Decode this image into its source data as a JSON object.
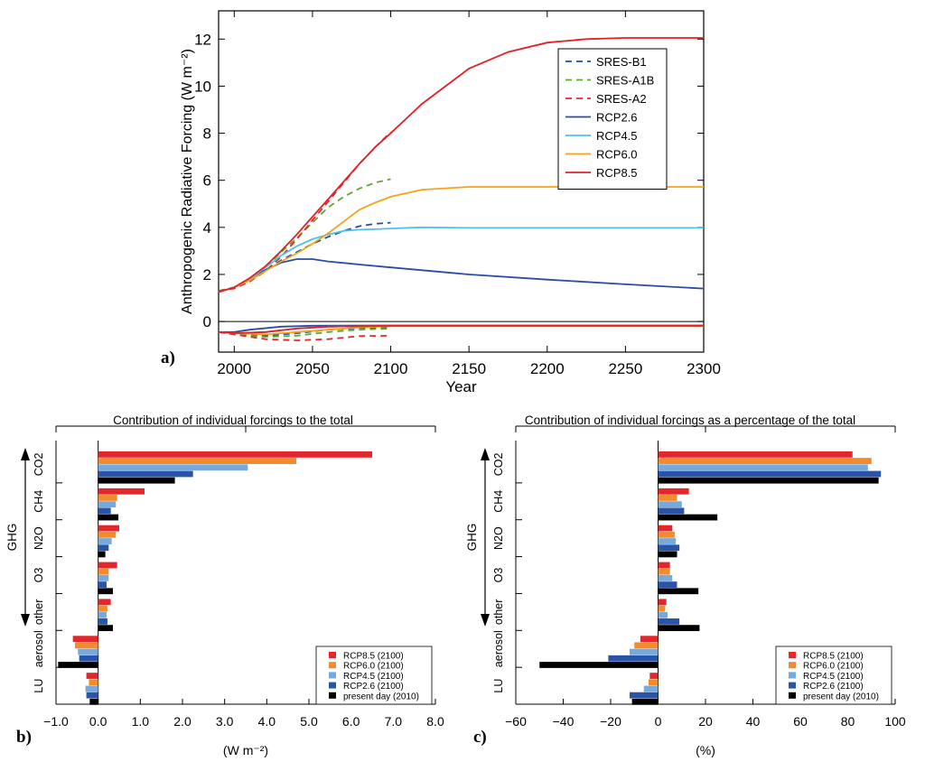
{
  "chart_data": [
    {
      "panel_label": "a)",
      "type": "line",
      "xlabel": "Year",
      "ylabel": "Anthropogenic Radiative Forcing (W m⁻²)",
      "xlim": [
        1990,
        2300
      ],
      "ylim": [
        -1.3,
        13.2
      ],
      "xticks": [
        2000,
        2050,
        2100,
        2150,
        2200,
        2250,
        2300
      ],
      "yticks": [
        0,
        2,
        4,
        6,
        8,
        10,
        12
      ],
      "grid": false,
      "legend_position": "top-right",
      "series": [
        {
          "name": "SRES-B1",
          "color": "#1f4f9e",
          "dash": true,
          "x": [
            1990,
            2000,
            2010,
            2020,
            2030,
            2040,
            2050,
            2060,
            2070,
            2080,
            2090,
            2100
          ],
          "y": [
            1.3,
            1.45,
            1.75,
            2.15,
            2.6,
            2.95,
            3.3,
            3.6,
            3.85,
            4.05,
            4.15,
            4.2
          ]
        },
        {
          "name": "SRES-A1B",
          "color": "#5aac2e",
          "dash": true,
          "x": [
            1990,
            2000,
            2010,
            2020,
            2030,
            2040,
            2050,
            2060,
            2070,
            2080,
            2090,
            2100
          ],
          "y": [
            1.3,
            1.45,
            1.8,
            2.3,
            2.95,
            3.55,
            4.2,
            4.85,
            5.3,
            5.65,
            5.9,
            6.05
          ]
        },
        {
          "name": "SRES-A2",
          "color": "#e5292f",
          "dash": true,
          "x": [
            1990,
            2000,
            2010,
            2020,
            2030,
            2040,
            2050,
            2060,
            2070,
            2080,
            2090,
            2100
          ],
          "y": [
            1.3,
            1.4,
            1.7,
            2.15,
            2.75,
            3.5,
            4.3,
            5.1,
            5.9,
            6.7,
            7.4,
            8.05
          ]
        },
        {
          "name": "RCP2.6",
          "color": "#2a4ca8",
          "dash": false,
          "x": [
            1990,
            2000,
            2010,
            2020,
            2030,
            2040,
            2050,
            2060,
            2080,
            2100,
            2150,
            2200,
            2250,
            2300
          ],
          "y": [
            1.25,
            1.45,
            1.8,
            2.2,
            2.5,
            2.65,
            2.65,
            2.55,
            2.42,
            2.3,
            2.0,
            1.78,
            1.58,
            1.4
          ]
        },
        {
          "name": "RCP4.5",
          "color": "#4ec3e8",
          "dash": false,
          "x": [
            1990,
            2000,
            2010,
            2020,
            2030,
            2040,
            2050,
            2060,
            2070,
            2080,
            2090,
            2100,
            2120,
            2150,
            2200,
            2250,
            2300
          ],
          "y": [
            1.25,
            1.45,
            1.8,
            2.3,
            2.8,
            3.2,
            3.5,
            3.7,
            3.85,
            3.9,
            3.92,
            3.95,
            4.0,
            3.98,
            3.98,
            3.98,
            3.98
          ]
        },
        {
          "name": "RCP6.0",
          "color": "#f5a318",
          "dash": false,
          "x": [
            1990,
            2000,
            2010,
            2020,
            2030,
            2040,
            2050,
            2060,
            2070,
            2080,
            2090,
            2100,
            2120,
            2150,
            2200,
            2250,
            2300
          ],
          "y": [
            1.25,
            1.45,
            1.75,
            2.15,
            2.55,
            2.9,
            3.3,
            3.75,
            4.25,
            4.75,
            5.05,
            5.3,
            5.6,
            5.72,
            5.72,
            5.72,
            5.72
          ]
        },
        {
          "name": "RCP8.5",
          "color": "#e41f26",
          "dash": false,
          "x": [
            1990,
            2000,
            2010,
            2020,
            2030,
            2040,
            2050,
            2060,
            2070,
            2080,
            2090,
            2100,
            2120,
            2150,
            2175,
            2200,
            2225,
            2250,
            2300
          ],
          "y": [
            1.25,
            1.45,
            1.85,
            2.35,
            3.0,
            3.7,
            4.45,
            5.2,
            5.95,
            6.7,
            7.4,
            8.0,
            9.25,
            10.75,
            11.45,
            11.85,
            12.0,
            12.05,
            12.05
          ]
        },
        {
          "name": "",
          "color": "#1f4f9e",
          "dash": true,
          "x": [
            1990,
            2000,
            2020,
            2040,
            2060,
            2080,
            2100
          ],
          "y": [
            -0.45,
            -0.5,
            -0.6,
            -0.5,
            -0.35,
            -0.28,
            -0.25
          ]
        },
        {
          "name": "",
          "color": "#5aac2e",
          "dash": true,
          "x": [
            1990,
            2000,
            2020,
            2040,
            2060,
            2080,
            2100
          ],
          "y": [
            -0.45,
            -0.55,
            -0.65,
            -0.6,
            -0.45,
            -0.35,
            -0.3
          ]
        },
        {
          "name": "",
          "color": "#e5292f",
          "dash": true,
          "x": [
            1990,
            2000,
            2020,
            2040,
            2060,
            2080,
            2100
          ],
          "y": [
            -0.45,
            -0.55,
            -0.75,
            -0.8,
            -0.75,
            -0.62,
            -0.6
          ]
        },
        {
          "name": "",
          "color": "#2a4ca8",
          "dash": false,
          "x": [
            1990,
            2000,
            2010,
            2030,
            2050,
            2100,
            2300
          ],
          "y": [
            -0.45,
            -0.45,
            -0.35,
            -0.22,
            -0.18,
            -0.17,
            -0.17
          ]
        },
        {
          "name": "",
          "color": "#4ec3e8",
          "dash": false,
          "x": [
            1990,
            2000,
            2020,
            2040,
            2060,
            2100,
            2300
          ],
          "y": [
            -0.45,
            -0.5,
            -0.45,
            -0.3,
            -0.22,
            -0.18,
            -0.18
          ]
        },
        {
          "name": "",
          "color": "#f5a318",
          "dash": false,
          "x": [
            1990,
            2000,
            2020,
            2040,
            2060,
            2080,
            2100,
            2300
          ],
          "y": [
            -0.45,
            -0.5,
            -0.55,
            -0.45,
            -0.35,
            -0.25,
            -0.2,
            -0.2
          ]
        },
        {
          "name": "",
          "color": "#e41f26",
          "dash": false,
          "x": [
            1990,
            2000,
            2020,
            2040,
            2060,
            2100,
            2300
          ],
          "y": [
            -0.45,
            -0.5,
            -0.45,
            -0.3,
            -0.22,
            -0.18,
            -0.18
          ]
        }
      ]
    },
    {
      "panel_label": "b)",
      "type": "bar",
      "orientation": "horizontal",
      "title": "Contribution of individual forcings to the total",
      "xlabel": "(W m⁻²)",
      "xlim": [
        -1.0,
        8.0
      ],
      "xticks": [
        -1.0,
        0.0,
        1.0,
        2.0,
        3.0,
        4.0,
        5.0,
        6.0,
        7.0,
        8.0
      ],
      "xtick_labels": [
        "−1.0",
        "0.0",
        "1.0",
        "2.0",
        "3.0",
        "4.0",
        "5.0",
        "6.0",
        "7.0",
        "8.0"
      ],
      "group_label": "GHG",
      "legend_position": "bottom-right",
      "categories": [
        "CO2",
        "CH4",
        "N2O",
        "O3",
        "other",
        "aerosol",
        "LU"
      ],
      "series": [
        {
          "name": "RCP8.5 (2100)",
          "color": "#e3262b",
          "values": [
            6.5,
            1.1,
            0.5,
            0.45,
            0.3,
            -0.6,
            -0.28
          ]
        },
        {
          "name": "RCP6.0 (2100)",
          "color": "#f28a2e",
          "values": [
            4.7,
            0.45,
            0.42,
            0.25,
            0.22,
            -0.55,
            -0.22
          ]
        },
        {
          "name": "RCP4.5 (2100)",
          "color": "#76a9dd",
          "values": [
            3.55,
            0.42,
            0.32,
            0.25,
            0.2,
            -0.48,
            -0.3
          ]
        },
        {
          "name": "RCP2.6 (2100)",
          "color": "#2a55a6",
          "values": [
            2.25,
            0.3,
            0.25,
            0.2,
            0.22,
            -0.45,
            -0.28
          ]
        },
        {
          "name": "present day (2010)",
          "color": "#000000",
          "values": [
            1.82,
            0.48,
            0.17,
            0.35,
            0.35,
            -0.95,
            -0.2
          ]
        }
      ]
    },
    {
      "panel_label": "c)",
      "type": "bar",
      "orientation": "horizontal",
      "title": "Contribution of individual forcings as a percentage of the total",
      "xlabel": "(%)",
      "xlim": [
        -60,
        100
      ],
      "xticks": [
        -60,
        -40,
        -20,
        0,
        20,
        40,
        60,
        80,
        100
      ],
      "xtick_labels": [
        "−60",
        "−40",
        "−20",
        "0",
        "20",
        "40",
        "60",
        "80",
        "100"
      ],
      "group_label": "GHG",
      "legend_position": "bottom-right",
      "categories": [
        "CO2",
        "CH4",
        "N2O",
        "O3",
        "other",
        "aerosol",
        "LU"
      ],
      "series": [
        {
          "name": "RCP8.5 (2100)",
          "color": "#e3262b",
          "values": [
            82,
            13,
            6,
            5,
            3.5,
            -7.5,
            -3.5
          ]
        },
        {
          "name": "RCP6.0 (2100)",
          "color": "#f28a2e",
          "values": [
            90,
            8,
            7,
            5,
            3,
            -10,
            -4
          ]
        },
        {
          "name": "RCP4.5 (2100)",
          "color": "#76a9dd",
          "values": [
            88.5,
            10,
            7.5,
            6,
            4,
            -12,
            -6
          ]
        },
        {
          "name": "RCP2.6 (2100)",
          "color": "#2a55a6",
          "values": [
            94,
            11,
            9,
            8,
            9,
            -21,
            -12
          ]
        },
        {
          "name": "present day (2010)",
          "color": "#000000",
          "values": [
            93,
            25,
            8,
            17,
            17.5,
            -50,
            -11
          ]
        }
      ]
    }
  ]
}
